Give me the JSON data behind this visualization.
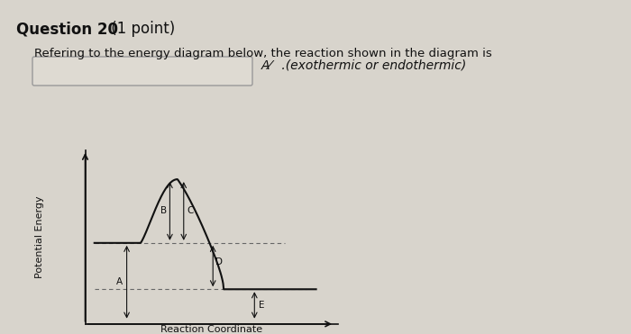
{
  "title_bold": "Question 20",
  "title_normal": " (1 point)",
  "subtitle": "Refering to the energy diagram below, the reaction shown in the diagram is",
  "answer_label": "A⁄   .(exothermic or endothermic)",
  "xlabel": "Reaction Coordinate",
  "ylabel": "Potential Energy",
  "bg_color": "#d8d4cc",
  "curve_color": "#111111",
  "dashed_color": "#666666",
  "arrow_color": "#111111",
  "text_color": "#111111",
  "reactant_level": 4.2,
  "product_level": 1.8,
  "peak_level": 7.5,
  "x_react_start": 0.3,
  "x_react_end": 1.8,
  "x_peak": 3.0,
  "x_prod_start": 4.5,
  "x_prod_end": 7.5,
  "xlim": [
    0.0,
    8.2
  ],
  "ylim": [
    0.0,
    9.0
  ]
}
